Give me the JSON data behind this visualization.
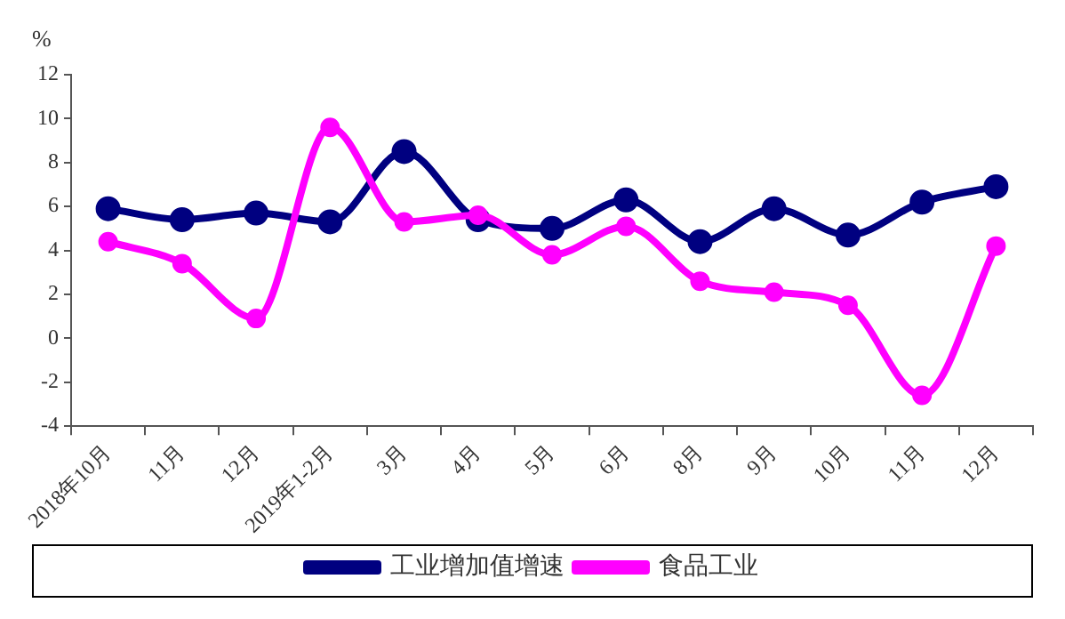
{
  "chart_data": {
    "type": "line",
    "ylabel": "%",
    "categories": [
      "2018年10月",
      "11月",
      "12月",
      "2019年1-2月",
      "3月",
      "4月",
      "5月",
      "6月",
      "8月",
      "9月",
      "10月",
      "11月",
      "12月"
    ],
    "series": [
      {
        "name": "工业增加值增速",
        "color": "#000080",
        "marker": "circle",
        "values": [
          5.9,
          5.4,
          5.7,
          5.3,
          8.5,
          5.4,
          5.0,
          6.3,
          4.4,
          5.9,
          4.7,
          6.2,
          6.9
        ]
      },
      {
        "name": "食品工业",
        "color": "#ff00ff",
        "marker": "circle",
        "values": [
          4.4,
          3.4,
          0.9,
          9.6,
          5.3,
          5.6,
          3.8,
          5.1,
          2.6,
          2.1,
          1.5,
          -2.6,
          4.2
        ]
      }
    ],
    "ylim": [
      -4,
      12
    ],
    "yticks": [
      -4,
      -2,
      0,
      2,
      4,
      6,
      8,
      10,
      12
    ],
    "grid": false,
    "legend": "bottom"
  }
}
